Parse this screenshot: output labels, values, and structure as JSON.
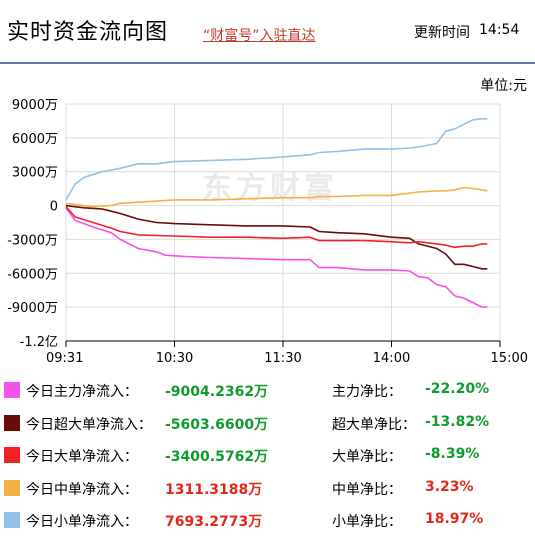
{
  "header": {
    "title": "实时资金流向图",
    "promo_link": "“财富号”入驻直达",
    "update_label": "更新时间",
    "update_time": "14:54"
  },
  "unit_label": "单位:元",
  "watermark": "东方财富",
  "colors": {
    "main": "#f752e8",
    "super": "#6b0a0a",
    "large": "#f2222a",
    "medium": "#f6b04a",
    "small": "#93c1e8",
    "up": "#e0281b",
    "down": "#109b2e",
    "axis": "#000000",
    "grid": "#dcdcdc"
  },
  "chart_data": {
    "type": "line",
    "ylabel": "",
    "y_ticks": [
      "9000万",
      "6000万",
      "3000万",
      "0",
      "-3000万",
      "-6000万",
      "-9000万",
      "-1.2亿"
    ],
    "y_tick_values": [
      9000,
      6000,
      3000,
      0,
      -3000,
      -6000,
      -9000,
      -12000
    ],
    "ylim": [
      -12000,
      9000
    ],
    "x_ticks": [
      "09:31",
      "10:30",
      "11:30",
      "14:00",
      "15:00"
    ],
    "x_tick_minutes": [
      0,
      60,
      120,
      180,
      240
    ],
    "xlim": [
      0,
      240
    ],
    "grid": true,
    "series": [
      {
        "name": "今日主力净流入",
        "color": "#f752e8",
        "x": [
          0,
          5,
          15,
          25,
          30,
          40,
          50,
          55,
          65,
          80,
          100,
          120,
          135,
          140,
          150,
          165,
          180,
          190,
          195,
          200,
          205,
          210,
          215,
          220,
          225,
          230,
          233
        ],
        "y": [
          -200,
          -1300,
          -1900,
          -2400,
          -3000,
          -3800,
          -4100,
          -4400,
          -4500,
          -4600,
          -4700,
          -4800,
          -4800,
          -5500,
          -5500,
          -5700,
          -5700,
          -5800,
          -6300,
          -6400,
          -7000,
          -7200,
          -8000,
          -8200,
          -8600,
          -9000,
          -9004
        ]
      },
      {
        "name": "今日超大单净流入",
        "color": "#6b0a0a",
        "x": [
          0,
          10,
          20,
          25,
          30,
          40,
          50,
          60,
          80,
          100,
          120,
          135,
          140,
          150,
          165,
          180,
          190,
          195,
          205,
          210,
          215,
          220,
          225,
          230,
          233
        ],
        "y": [
          0,
          -200,
          -300,
          -500,
          -700,
          -1200,
          -1500,
          -1600,
          -1700,
          -1800,
          -1800,
          -1900,
          -2300,
          -2400,
          -2500,
          -2800,
          -2900,
          -3400,
          -3800,
          -4300,
          -5200,
          -5200,
          -5400,
          -5600,
          -5604
        ]
      },
      {
        "name": "今日大单净流入",
        "color": "#f2222a",
        "x": [
          0,
          5,
          15,
          25,
          30,
          40,
          60,
          80,
          100,
          120,
          135,
          140,
          150,
          165,
          180,
          190,
          195,
          205,
          210,
          215,
          220,
          225,
          230,
          233
        ],
        "y": [
          -100,
          -1000,
          -1500,
          -2000,
          -2300,
          -2600,
          -2700,
          -2800,
          -2800,
          -2900,
          -2800,
          -3100,
          -3100,
          -3100,
          -3200,
          -3300,
          -3200,
          -3400,
          -3500,
          -3700,
          -3600,
          -3600,
          -3400,
          -3401
        ]
      },
      {
        "name": "今日中单净流入",
        "color": "#f6b04a",
        "x": [
          0,
          5,
          15,
          25,
          30,
          40,
          50,
          60,
          80,
          100,
          120,
          135,
          140,
          150,
          165,
          180,
          190,
          195,
          205,
          210,
          215,
          220,
          225,
          230,
          233
        ],
        "y": [
          200,
          100,
          -100,
          0,
          200,
          300,
          400,
          500,
          500,
          600,
          700,
          700,
          800,
          800,
          900,
          900,
          1100,
          1200,
          1300,
          1300,
          1400,
          1600,
          1500,
          1400,
          1311
        ]
      },
      {
        "name": "今日小单净流入",
        "color": "#93c1e8",
        "x": [
          0,
          5,
          10,
          20,
          30,
          40,
          50,
          60,
          80,
          100,
          120,
          135,
          140,
          150,
          165,
          180,
          190,
          195,
          205,
          210,
          215,
          220,
          225,
          230,
          233
        ],
        "y": [
          500,
          1900,
          2500,
          3000,
          3300,
          3700,
          3700,
          3900,
          4000,
          4100,
          4300,
          4500,
          4700,
          4800,
          5000,
          5000,
          5100,
          5200,
          5500,
          6600,
          6800,
          7200,
          7600,
          7700,
          7693
        ]
      }
    ]
  },
  "legend": [
    {
      "label": "今日主力净流入：",
      "value": "-9004.2362万",
      "ratio_label": "主力净比：",
      "ratio": "-22.20%",
      "color": "#f752e8",
      "value_dir": "down",
      "ratio_dir": "down"
    },
    {
      "label": "今日超大单净流入：",
      "value": "-5603.6600万",
      "ratio_label": "超大单净比：",
      "ratio": "-13.82%",
      "color": "#6b0a0a",
      "value_dir": "down",
      "ratio_dir": "down"
    },
    {
      "label": "今日大单净流入：",
      "value": "-3400.5762万",
      "ratio_label": "大单净比：",
      "ratio": "-8.39%",
      "color": "#f2222a",
      "value_dir": "down",
      "ratio_dir": "down"
    },
    {
      "label": "今日中单净流入：",
      "value": "1311.3188万",
      "ratio_label": "中单净比：",
      "ratio": "3.23%",
      "color": "#f6b04a",
      "value_dir": "up",
      "ratio_dir": "up"
    },
    {
      "label": "今日小单净流入：",
      "value": "7693.2773万",
      "ratio_label": "小单净比：",
      "ratio": "18.97%",
      "color": "#93c1e8",
      "value_dir": "up",
      "ratio_dir": "up"
    }
  ]
}
